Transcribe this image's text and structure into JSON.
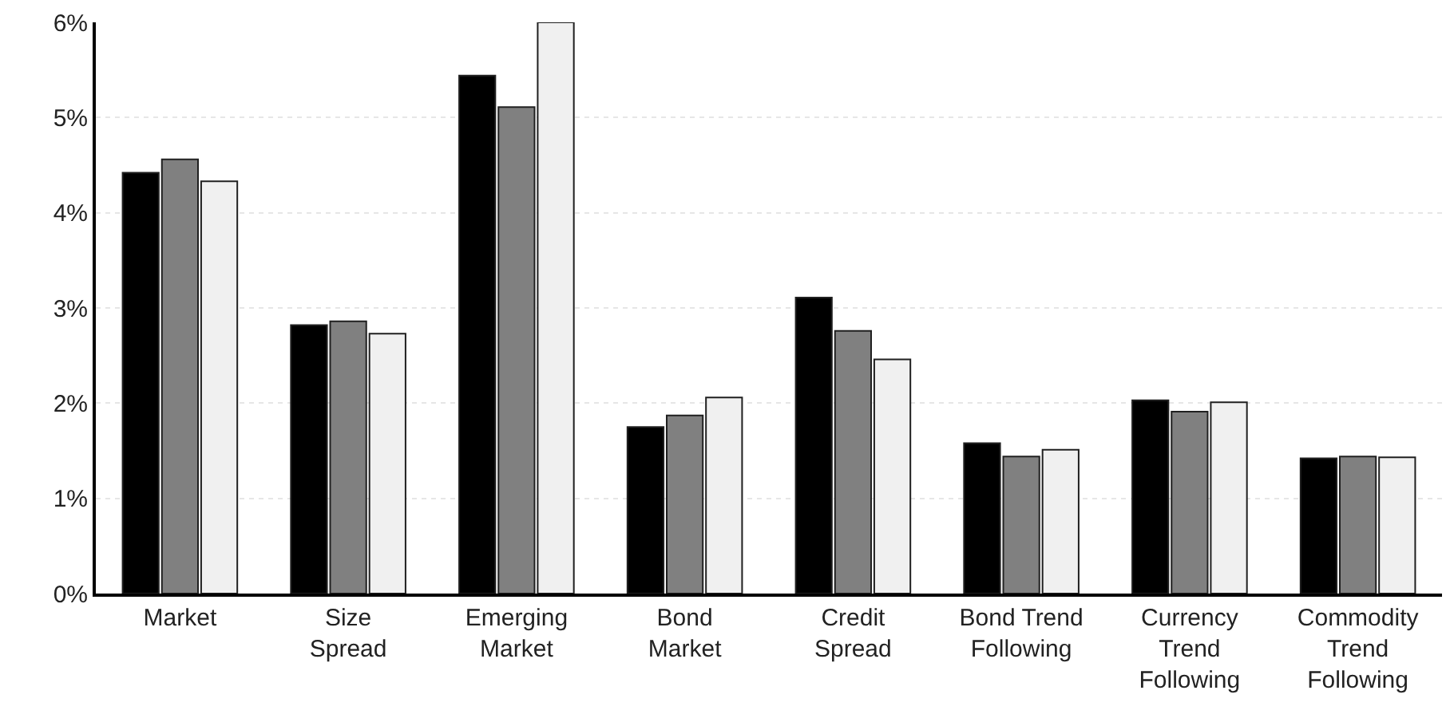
{
  "chart_data": {
    "type": "bar",
    "categories": [
      "Market",
      "Size\nSpread",
      "Emerging\nMarket",
      "Bond\nMarket",
      "Credit\nSpread",
      "Bond Trend\nFollowing",
      "Currency\nTrend\nFollowing",
      "Commodity\nTrend\nFollowing"
    ],
    "series": [
      {
        "color": "#000000",
        "values": [
          4.42,
          2.82,
          5.44,
          1.75,
          3.11,
          1.58,
          2.03,
          1.42
        ]
      },
      {
        "color": "#808080",
        "values": [
          4.56,
          2.86,
          5.11,
          1.87,
          2.76,
          1.44,
          1.91,
          1.44
        ]
      },
      {
        "color": "#f0f0f0",
        "values": [
          4.33,
          2.73,
          6.0,
          2.06,
          2.46,
          1.51,
          2.01,
          1.43
        ]
      }
    ],
    "ylim": [
      0,
      6
    ],
    "yticks": [
      {
        "value": 0,
        "label": "0%"
      },
      {
        "value": 1,
        "label": "1%"
      },
      {
        "value": 2,
        "label": "2%"
      },
      {
        "value": 3,
        "label": "3%"
      },
      {
        "value": 4,
        "label": "4%"
      },
      {
        "value": 5,
        "label": "5%"
      },
      {
        "value": 6,
        "label": "6%"
      }
    ],
    "grid": "y"
  }
}
